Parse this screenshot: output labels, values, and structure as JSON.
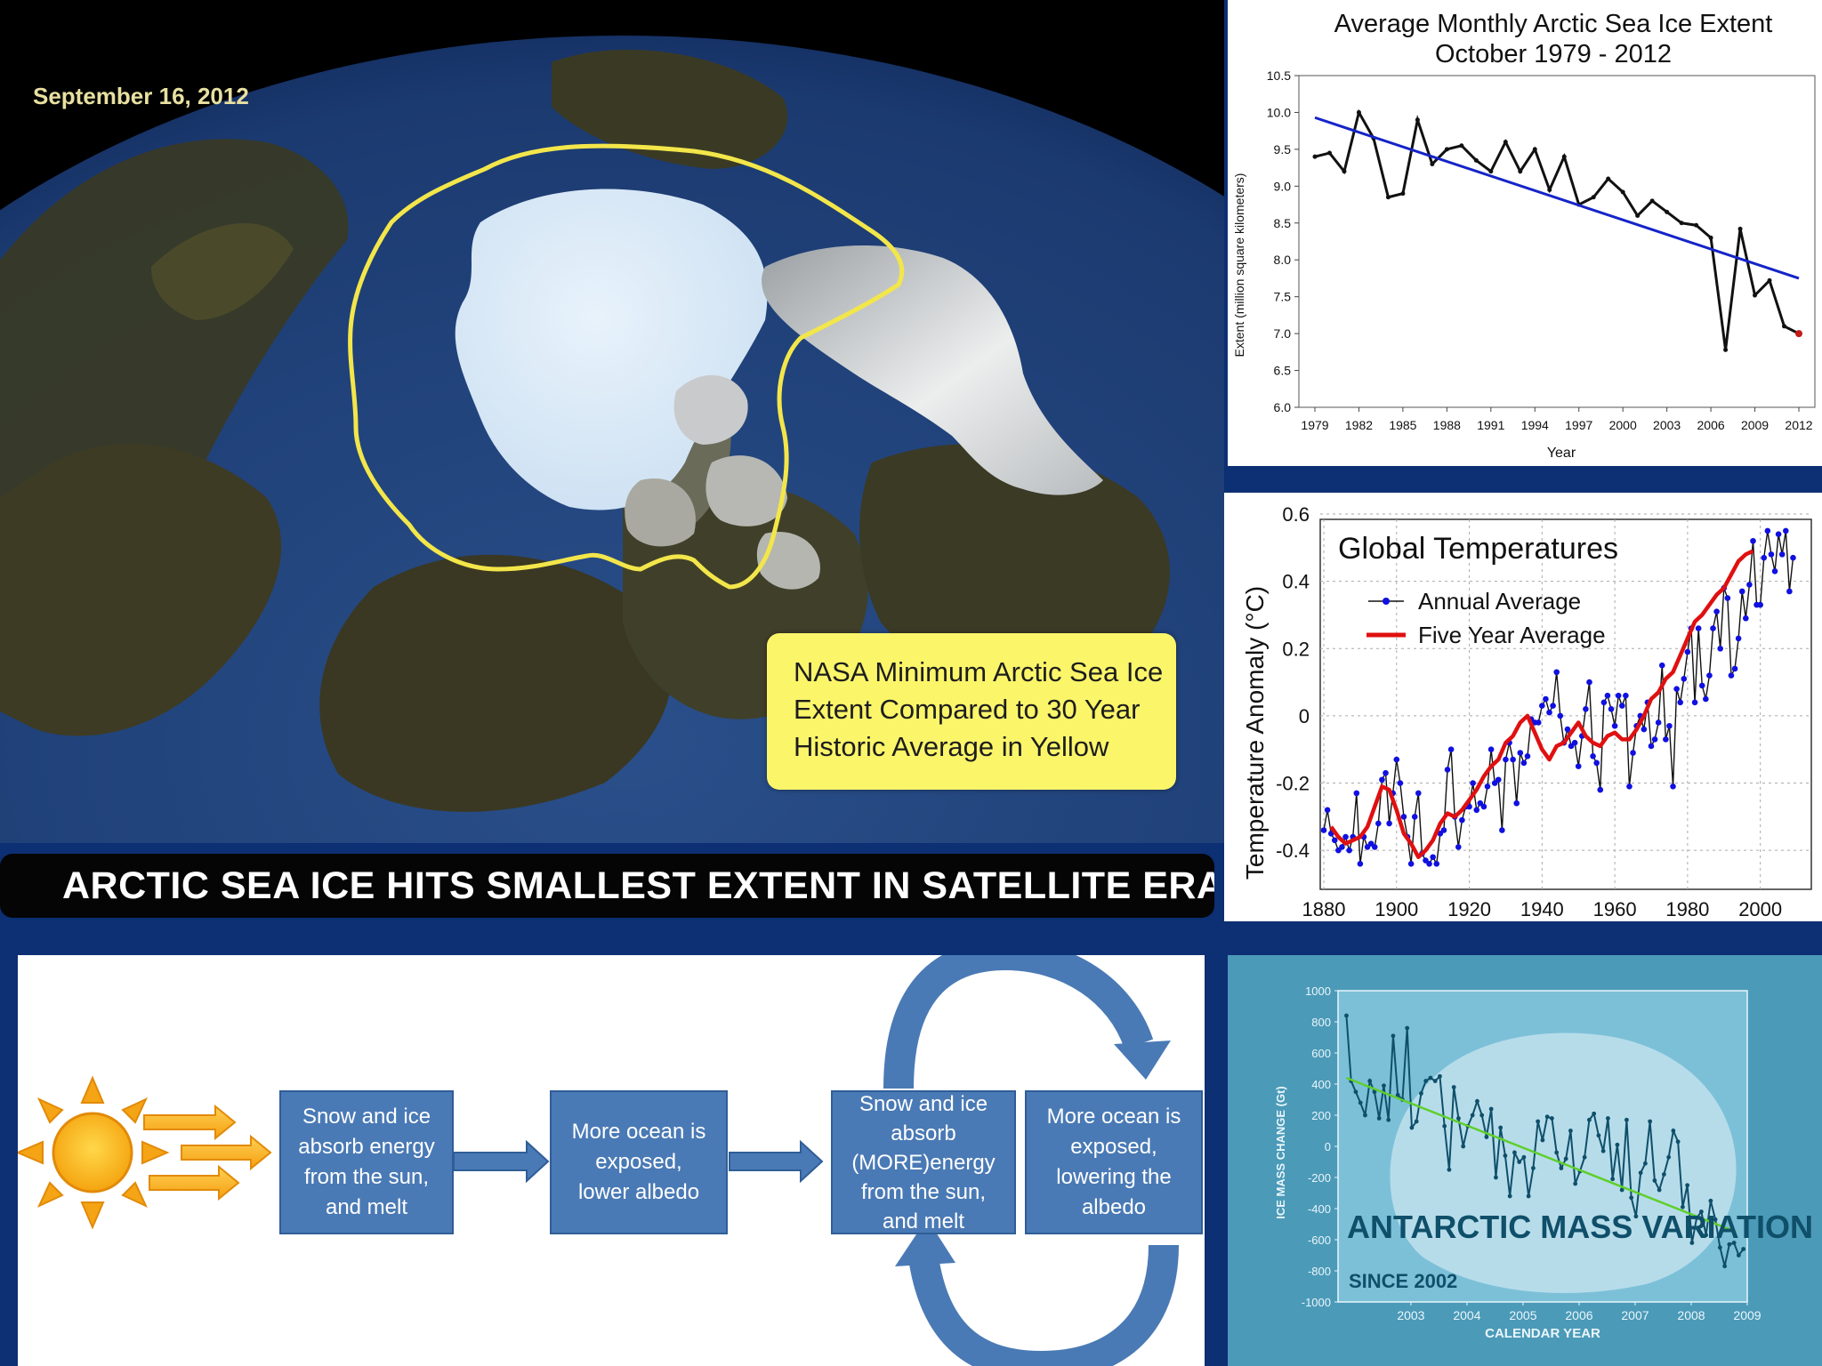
{
  "arctic_map": {
    "date": "September 16, 2012",
    "caption_lines": [
      "NASA Minimum Arctic Sea Ice",
      "Extent Compared to 30 Year",
      "Historic Average in Yellow"
    ]
  },
  "headline": "ARCTIC SEA ICE HITS SMALLEST EXTENT IN SATELLITE ERA",
  "albedo_diagram": {
    "boxes": [
      [
        "Snow and ice",
        "absorb energy",
        "from the sun,",
        "and  melt"
      ],
      [
        "More ocean is",
        "exposed,",
        "lower albedo"
      ],
      [
        "Snow and ice",
        "absorb",
        "(MORE)energy",
        "from the sun,",
        "and  melt"
      ],
      [
        "More ocean is",
        "exposed,",
        "lowering the",
        "albedo"
      ]
    ]
  },
  "colors": {
    "trend_blue": "#1424c8",
    "annual_blue": "#1010e0",
    "five_year_red": "#e01010",
    "antarctic_trend": "#5fcf2a",
    "antarctic_line": "#0f4f6a",
    "callout_yellow": "#fbf56a",
    "flow_box": "#4a7ab5"
  },
  "chart_data": [
    {
      "type": "line",
      "title": "Average Monthly Arctic Sea Ice Extent",
      "subtitle": "October 1979 - 2012",
      "xlabel": "Year",
      "ylabel": "Extent (million square kilometers)",
      "xlim": [
        1979,
        2012
      ],
      "ylim": [
        6.0,
        10.5
      ],
      "xticks": [
        "1979",
        "1982",
        "1985",
        "1988",
        "1991",
        "1994",
        "1997",
        "2000",
        "2003",
        "2006",
        "2009",
        "2012"
      ],
      "yticks": [
        "10.5",
        "10.0",
        "9.5",
        "9.0",
        "8.5",
        "8.0",
        "7.5",
        "7.0",
        "6.5",
        "6.0"
      ],
      "x": [
        1979,
        1980,
        1981,
        1982,
        1983,
        1984,
        1985,
        1986,
        1987,
        1988,
        1989,
        1990,
        1991,
        1992,
        1993,
        1994,
        1995,
        1996,
        1997,
        1998,
        1999,
        2000,
        2001,
        2002,
        2003,
        2004,
        2005,
        2006,
        2007,
        2008,
        2009,
        2010,
        2011,
        2012
      ],
      "series": [
        {
          "values": [
            9.4,
            9.45,
            9.2,
            10.0,
            9.65,
            8.85,
            8.9,
            9.9,
            9.3,
            9.5,
            9.55,
            9.35,
            9.2,
            9.6,
            9.2,
            9.5,
            8.95,
            9.4,
            8.75,
            8.85,
            9.1,
            8.92,
            8.6,
            8.8,
            8.65,
            8.5,
            8.47,
            8.3,
            6.78,
            8.42,
            7.52,
            7.72,
            7.1,
            7.0
          ]
        },
        {
          "name": "trend",
          "values": [
            9.93,
            7.75
          ],
          "x": [
            1979,
            2012
          ]
        }
      ],
      "last_point_highlight": true
    },
    {
      "type": "line",
      "title": "Global Temperatures",
      "ylabel": "Temperature Anomaly (°C)",
      "xlim": [
        1880,
        2015
      ],
      "ylim": [
        -0.5,
        0.6
      ],
      "xticks": [
        "1880",
        "1900",
        "1920",
        "1940",
        "1960",
        "1980",
        "2000"
      ],
      "yticks": [
        "0.6",
        "0.4",
        "0.2",
        "0",
        "-0.2",
        "-0.4"
      ],
      "legend_position": "top-left",
      "legend": [
        "Annual Average",
        "Five Year Average"
      ],
      "annual_x_start": 1880,
      "series": [
        {
          "name": "Annual Average",
          "values": [
            -0.34,
            -0.28,
            -0.35,
            -0.37,
            -0.4,
            -0.39,
            -0.36,
            -0.4,
            -0.36,
            -0.23,
            -0.44,
            -0.36,
            -0.39,
            -0.38,
            -0.39,
            -0.32,
            -0.19,
            -0.17,
            -0.32,
            -0.23,
            -0.13,
            -0.2,
            -0.3,
            -0.36,
            -0.44,
            -0.3,
            -0.23,
            -0.41,
            -0.43,
            -0.44,
            -0.42,
            -0.44,
            -0.35,
            -0.34,
            -0.16,
            -0.1,
            -0.3,
            -0.39,
            -0.31,
            -0.27,
            -0.27,
            -0.2,
            -0.28,
            -0.26,
            -0.27,
            -0.21,
            -0.1,
            -0.2,
            -0.19,
            -0.34,
            -0.13,
            -0.08,
            -0.13,
            -0.26,
            -0.11,
            -0.14,
            -0.12,
            -0.01,
            -0.02,
            -0.02,
            0.03,
            0.05,
            0.01,
            0.03,
            0.13,
            0.0,
            -0.08,
            -0.04,
            -0.09,
            -0.08,
            -0.15,
            -0.06,
            0.02,
            0.1,
            -0.12,
            -0.14,
            -0.22,
            0.04,
            0.06,
            0.02,
            -0.03,
            0.06,
            0.03,
            0.06,
            -0.21,
            -0.11,
            -0.03,
            0.0,
            -0.04,
            0.04,
            -0.09,
            -0.07,
            -0.02,
            0.15,
            -0.07,
            -0.03,
            -0.21,
            0.08,
            0.04,
            0.11,
            0.19,
            0.26,
            0.04,
            0.26,
            0.09,
            0.05,
            0.12,
            0.26,
            0.31,
            0.2,
            0.38,
            0.35,
            0.12,
            0.14,
            0.23,
            0.37,
            0.29,
            0.39,
            0.52,
            0.33,
            0.33,
            0.47,
            0.55,
            0.48,
            0.43,
            0.54,
            0.48,
            0.55,
            0.37,
            0.47
          ]
        },
        {
          "name": "Five Year Average",
          "values": [
            -0.33,
            -0.36,
            -0.38,
            -0.37,
            -0.36,
            -0.33,
            -0.27,
            -0.21,
            -0.22,
            -0.28,
            -0.35,
            -0.38,
            -0.42,
            -0.4,
            -0.37,
            -0.32,
            -0.29,
            -0.3,
            -0.28,
            -0.25,
            -0.22,
            -0.18,
            -0.15,
            -0.13,
            -0.08,
            -0.06,
            -0.02,
            0.0,
            -0.05,
            -0.1,
            -0.13,
            -0.09,
            -0.08,
            -0.05,
            -0.02,
            -0.06,
            -0.08,
            -0.09,
            -0.06,
            -0.05,
            -0.07,
            -0.07,
            -0.04,
            0.0,
            0.05,
            0.07,
            0.11,
            0.13,
            0.18,
            0.23,
            0.28,
            0.3,
            0.33,
            0.36,
            0.38,
            0.42,
            0.46,
            0.48,
            0.49
          ],
          "x_step": 2
        }
      ]
    },
    {
      "type": "line",
      "title": "ANTARCTIC MASS VARIATION",
      "subtitle": "SINCE 2002",
      "xlabel": "CALENDAR YEAR",
      "ylabel": "ICE MASS CHANGE (Gt)",
      "xlim": [
        2002.2,
        2009.5
      ],
      "ylim": [
        -1000,
        1000
      ],
      "xticks": [
        "2003",
        "2004",
        "2005",
        "2006",
        "2007",
        "2008",
        "2009"
      ],
      "yticks": [
        "1000",
        "800",
        "600",
        "400",
        "200",
        "0",
        "-200",
        "-400",
        "-600",
        "-800",
        "-1000"
      ],
      "x_start": 2002.35,
      "x_step": 0.0833,
      "series": [
        {
          "values": [
            840,
            420,
            350,
            280,
            200,
            420,
            350,
            180,
            390,
            170,
            710,
            330,
            300,
            760,
            120,
            160,
            340,
            420,
            440,
            420,
            450,
            130,
            -150,
            380,
            180,
            0,
            130,
            200,
            290,
            200,
            60,
            240,
            -200,
            120,
            -60,
            -320,
            -40,
            -100,
            -70,
            -320,
            -140,
            160,
            40,
            190,
            180,
            -40,
            -140,
            -80,
            100,
            -240,
            -160,
            -70,
            170,
            210,
            70,
            -30,
            180,
            -210,
            10,
            -280,
            170,
            -330,
            -450,
            -170,
            -110,
            160,
            -220,
            -280,
            -180,
            -70,
            100,
            30,
            -390,
            -250,
            -620,
            -460,
            -420,
            -570,
            -350,
            -470,
            -650,
            -770,
            -630,
            -620,
            -700,
            -660
          ]
        },
        {
          "name": "trend",
          "x": [
            2002.35,
            2009.3
          ],
          "values": [
            440,
            -550
          ]
        }
      ]
    }
  ]
}
